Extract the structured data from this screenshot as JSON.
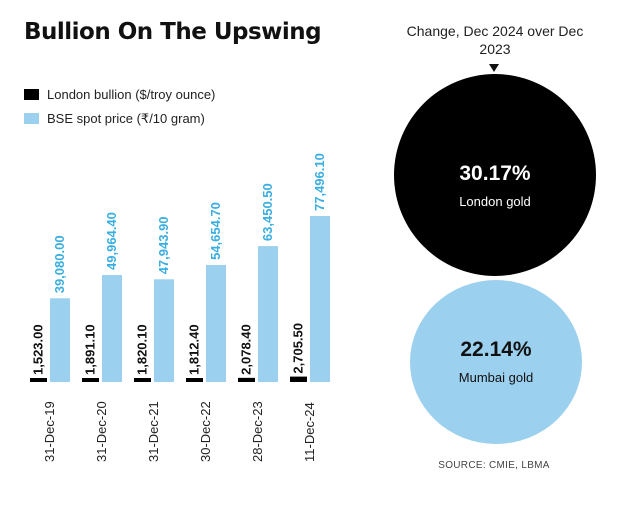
{
  "title": "Bullion On The Upswing",
  "legend": [
    {
      "label": "London bullion ($/troy ounce)",
      "color": "#000000"
    },
    {
      "label": "BSE spot price (₹/10 gram)",
      "color": "#9bd0ef"
    }
  ],
  "chart_data": {
    "type": "bar",
    "categories": [
      "31-Dec-19",
      "31-Dec-20",
      "31-Dec-21",
      "30-Dec-22",
      "28-Dec-23",
      "11-Dec-24"
    ],
    "series": [
      {
        "name": "London bullion ($/troy ounce)",
        "color": "#000000",
        "values": [
          1523.0,
          1891.1,
          1820.1,
          1812.4,
          2078.4,
          2705.5
        ],
        "labels": [
          "1,523.00",
          "1,891.10",
          "1,820.10",
          "1,812.40",
          "2,078.40",
          "2,705.50"
        ]
      },
      {
        "name": "BSE spot price (₹/10 gram)",
        "color": "#9bd0ef",
        "values": [
          39080.0,
          49964.4,
          47943.9,
          54654.7,
          63450.5,
          77496.1
        ],
        "labels": [
          "39,080.00",
          "49,964.40",
          "47,943.90",
          "54,654.70",
          "63,450.50",
          "77,496.10"
        ]
      }
    ]
  },
  "change": {
    "title": "Change, Dec 2024 over Dec 2023",
    "london": {
      "value": "30.17%",
      "label": "London gold",
      "color": "#000000"
    },
    "mumbai": {
      "value": "22.14%",
      "label": "Mumbai gold",
      "color": "#9bd0ef"
    }
  },
  "source": "SOURCE: CMIE, LBMA"
}
